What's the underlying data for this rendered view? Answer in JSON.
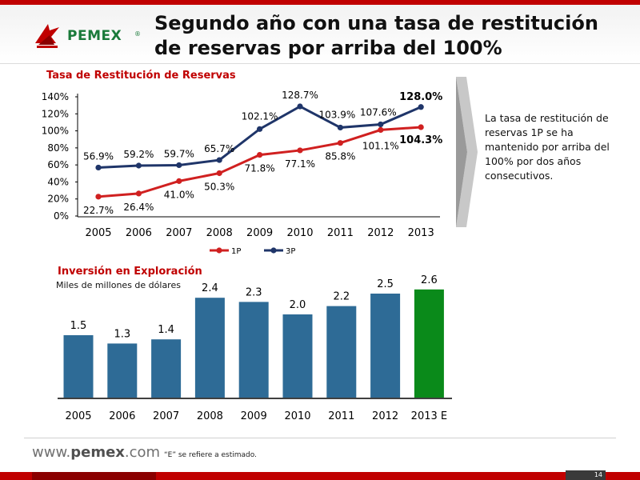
{
  "header": {
    "title_line1": "Segundo año con una tasa de restitución",
    "title_line2": "de reservas por arriba del 100%",
    "logo_text": "PEMEX",
    "logo_reg": "®"
  },
  "callout": {
    "text": "La tasa de restitución de reservas 1P se ha mantenido por arriba del 100% por dos años consecutivos."
  },
  "colors": {
    "brand_red": "#c00000",
    "line_1p": "#d02020",
    "line_3p": "#1f3569",
    "bar_blue": "#2e6b96",
    "bar_green": "#0a8a1a"
  },
  "chart_data": [
    {
      "type": "line",
      "title": "Tasa de Restitución de Reservas",
      "x": [
        "2005",
        "2006",
        "2007",
        "2008",
        "2009",
        "2010",
        "2011",
        "2012",
        "2013"
      ],
      "series": [
        {
          "name": "1P",
          "values": [
            22.7,
            26.4,
            41.0,
            50.3,
            71.8,
            77.1,
            85.8,
            101.1,
            104.3
          ],
          "labels": [
            "22.7%",
            "26.4%",
            "41.0%",
            "50.3%",
            "71.8%",
            "77.1%",
            "85.8%",
            "101.1%",
            "104.3%"
          ]
        },
        {
          "name": "3P",
          "values": [
            56.9,
            59.2,
            59.7,
            65.7,
            102.1,
            128.7,
            103.9,
            107.6,
            128.0
          ],
          "labels": [
            "56.9%",
            "59.2%",
            "59.7%",
            "65.7%",
            "102.1%",
            "128.7%",
            "103.9%",
            "107.6%",
            "128.0%"
          ]
        }
      ],
      "y_ticks": [
        "0%",
        "20%",
        "40%",
        "60%",
        "80%",
        "100%",
        "120%",
        "140%"
      ],
      "ylim": [
        0,
        140
      ],
      "legend": "bottom",
      "grid": false
    },
    {
      "type": "bar",
      "title": "Inversión en Exploración",
      "subtitle": "Miles de millones de dólares",
      "categories": [
        "2005",
        "2006",
        "2007",
        "2008",
        "2009",
        "2010",
        "2011",
        "2012",
        "2013 E"
      ],
      "values": [
        1.5,
        1.3,
        1.4,
        2.4,
        2.3,
        2.0,
        2.2,
        2.5,
        2.6
      ],
      "labels": [
        "1.5",
        "1.3",
        "1.4",
        "2.4",
        "2.3",
        "2.0",
        "2.2",
        "2.5",
        "2.6"
      ],
      "highlight_index": 8,
      "grid": false
    }
  ],
  "footer": {
    "url_prefix": "www.",
    "url_brand": "pemex",
    "url_suffix": ".com",
    "note": "“E” se refiere a estimado.",
    "page_number": "14"
  }
}
